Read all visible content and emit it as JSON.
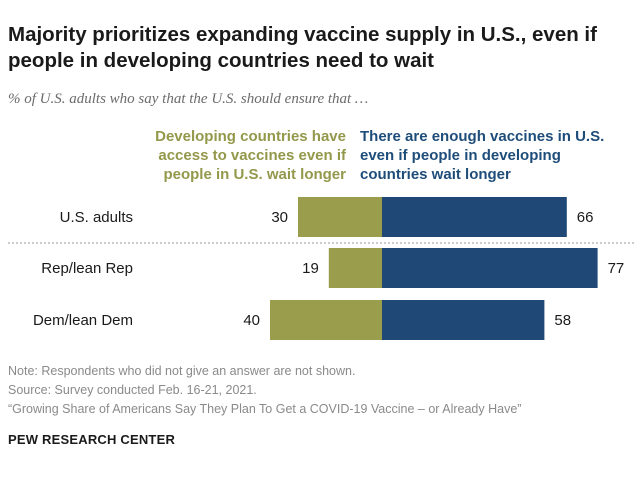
{
  "title": "Majority prioritizes expanding vaccine supply in U.S., even if people in developing countries need to wait",
  "subtitle": "% of U.S. adults who say that the U.S. should ensure that …",
  "colors": {
    "left_series": "#9a9d4c",
    "right_series": "#1f4877",
    "left_label": "#93984a",
    "right_label": "#1f4d7a"
  },
  "chart_data": {
    "type": "bar",
    "orientation": "horizontal-diverging",
    "categories": [
      "U.S. adults",
      "Rep/lean Rep",
      "Dem/lean Dem"
    ],
    "series": [
      {
        "name": "Developing countries have access to vaccines even if people in U.S. wait longer",
        "values": [
          30,
          19,
          40
        ]
      },
      {
        "name": "There are enough vaccines in U.S. even if people in developing countries wait longer",
        "values": [
          66,
          77,
          58
        ]
      }
    ],
    "data_labels": true,
    "grid": false,
    "legend_placement": "top"
  },
  "notes": [
    "Note: Respondents who did not give an answer are not shown.",
    "Source: Survey conducted Feb. 16-21, 2021.",
    "“Growing Share of Americans Say They Plan To Get a COVID-19 Vaccine – or Already Have”"
  ],
  "brand": "PEW RESEARCH CENTER"
}
